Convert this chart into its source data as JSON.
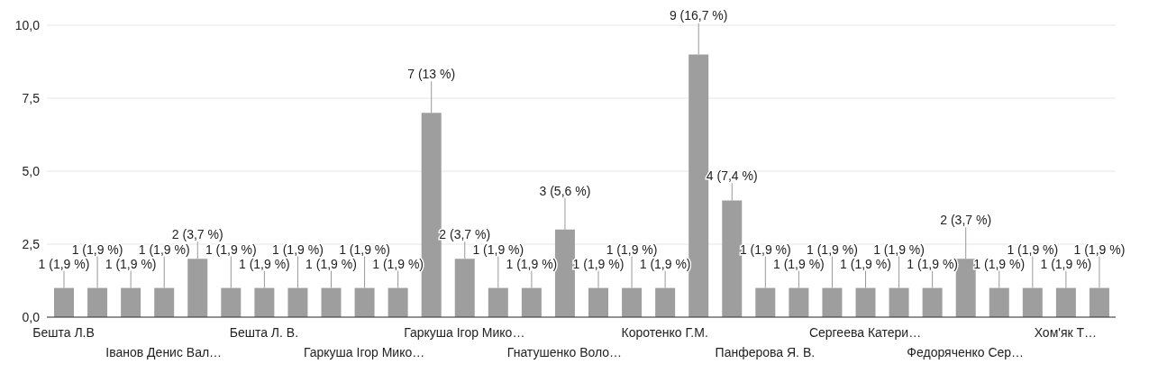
{
  "chart_data": {
    "type": "bar",
    "categories": [
      "Бешта Л.В",
      null,
      null,
      "Іванов Денис Вал…",
      null,
      null,
      "Бешта Л. В.",
      null,
      null,
      "Гаркуша Ігор Мико…",
      null,
      null,
      "Гаркуша Ігор Мико…",
      null,
      null,
      "Гнатушенко Воло…",
      null,
      null,
      "Коротенко Г.М.",
      null,
      null,
      "Панферова Я. В.",
      null,
      null,
      "Сергеева Катери…",
      null,
      null,
      "Федоряченко Сер…",
      null,
      null,
      "Хом'як Т…",
      null
    ],
    "values": [
      1,
      1,
      1,
      1,
      2,
      1,
      1,
      1,
      1,
      1,
      1,
      7,
      2,
      1,
      1,
      3,
      1,
      1,
      1,
      9,
      4,
      1,
      1,
      1,
      1,
      1,
      1,
      2,
      1,
      1,
      1,
      1
    ],
    "value_labels": [
      "1 (1,9 %)",
      "1 (1,9 %)",
      "1 (1,9 %)",
      "1 (1,9 %)",
      "2 (3,7 %)",
      "1 (1,9 %)",
      "1 (1,9 %)",
      "1 (1,9 %)",
      "1 (1,9 %)",
      "1 (1,9 %)",
      "1 (1,9 %)",
      "7 (13 %)",
      "2 (3,7 %)",
      "1 (1,9 %)",
      "1 (1,9 %)",
      "3 (5,6 %)",
      "1 (1,9 %)",
      "1 (1,9 %)",
      "1 (1,9 %)",
      "9 (16,7 %)",
      "4 (7,4 %)",
      "1 (1,9 %)",
      "1 (1,9 %)",
      "1 (1,9 %)",
      "1 (1,9 %)",
      "1 (1,9 %)",
      "1 (1,9 %)",
      "2 (3,7 %)",
      "1 (1,9 %)",
      "1 (1,9 %)",
      "1 (1,9 %)",
      "1 (1,9 %)"
    ],
    "color": "#9e9e9e",
    "ylim": [
      0,
      10
    ],
    "yticks": [
      {
        "value": 0,
        "label": "0,0"
      },
      {
        "value": 2.5,
        "label": "2,5"
      },
      {
        "value": 5,
        "label": "5,0"
      },
      {
        "value": 7.5,
        "label": "7,5"
      },
      {
        "value": 10,
        "label": "10,0"
      }
    ],
    "grid": "y"
  }
}
